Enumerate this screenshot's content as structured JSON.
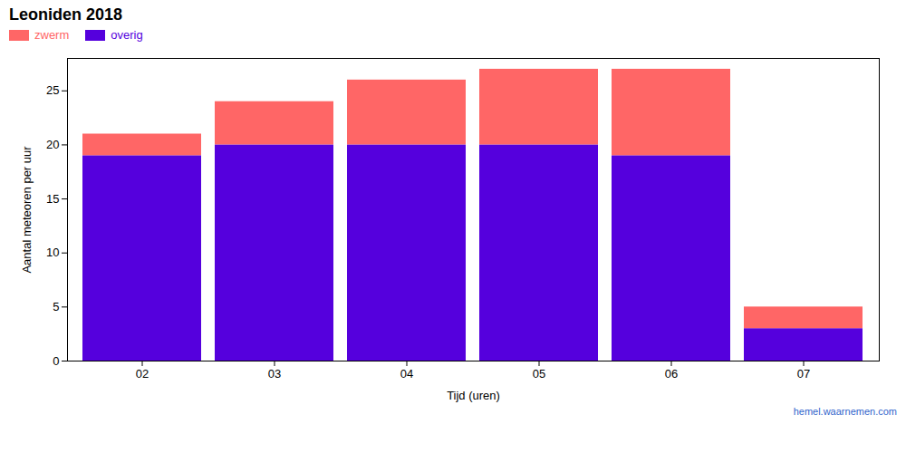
{
  "chart_data": {
    "type": "bar",
    "stacked": true,
    "title": "Leoniden 2018",
    "x_label": "Tijd (uren)",
    "y_label": "Aantal meteoren per uur",
    "categories": [
      "02",
      "03",
      "04",
      "05",
      "06",
      "07"
    ],
    "series": [
      {
        "name": "overig",
        "color": "#5500dd",
        "values": [
          19,
          20,
          20,
          20,
          19,
          3
        ]
      },
      {
        "name": "zwerm",
        "color": "#ff6666",
        "values": [
          2,
          4,
          6,
          7,
          8,
          2
        ]
      }
    ],
    "ylim": [
      0,
      28
    ],
    "yticks": [
      0,
      5,
      10,
      15,
      20,
      25
    ],
    "grid": false,
    "legend": "upper left",
    "annotations": [
      {
        "text": "hemel.waarnemen.com",
        "color": "#3366cc"
      }
    ]
  }
}
